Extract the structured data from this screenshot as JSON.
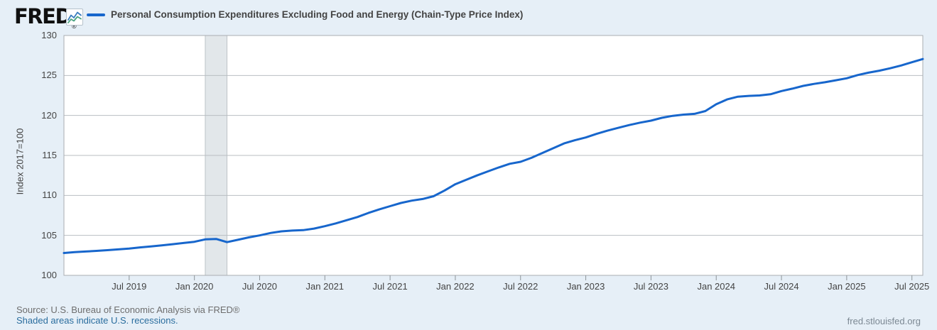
{
  "header": {
    "logo_text": "FRED",
    "logo_registered": "®"
  },
  "chart_data": {
    "type": "line",
    "title": "Personal Consumption Expenditures Excluding Food and Energy (Chain-Type Price Index)",
    "xlabel": "",
    "ylabel": "Index 2017=100",
    "ylim": [
      100,
      130
    ],
    "y_ticks": [
      100,
      105,
      110,
      115,
      120,
      125,
      130
    ],
    "grid": "horizontal",
    "legend_position": "top-left",
    "frequency": "monthly",
    "x_start": "2019-01",
    "x_end": "2025-08",
    "x_tick_labels": [
      "Jul 2019",
      "Jan 2020",
      "Jul 2020",
      "Jan 2021",
      "Jul 2021",
      "Jan 2022",
      "Jul 2022",
      "Jan 2023",
      "Jul 2023",
      "Jan 2024",
      "Jul 2024",
      "Jan 2025",
      "Jul 2025"
    ],
    "x_tick_month_indices": [
      6,
      12,
      18,
      24,
      30,
      36,
      42,
      48,
      54,
      60,
      66,
      72,
      78
    ],
    "series": [
      {
        "name": "Personal Consumption Expenditures Excluding Food and Energy (Chain-Type Price Index)",
        "color": "#1766cc",
        "values": [
          102.8,
          102.9,
          102.98,
          103.06,
          103.15,
          103.25,
          103.35,
          103.5,
          103.62,
          103.75,
          103.9,
          104.05,
          104.2,
          104.5,
          104.55,
          104.15,
          104.45,
          104.75,
          105.0,
          105.3,
          105.5,
          105.6,
          105.65,
          105.85,
          106.15,
          106.5,
          106.9,
          107.3,
          107.8,
          108.25,
          108.65,
          109.05,
          109.35,
          109.55,
          109.9,
          110.6,
          111.4,
          111.95,
          112.5,
          113.0,
          113.5,
          113.95,
          114.2,
          114.7,
          115.3,
          115.9,
          116.5,
          116.9,
          117.25,
          117.7,
          118.1,
          118.45,
          118.8,
          119.1,
          119.35,
          119.7,
          119.95,
          120.1,
          120.2,
          120.55,
          121.4,
          122.0,
          122.35,
          122.45,
          122.5,
          122.65,
          123.05,
          123.35,
          123.7,
          123.95,
          124.15,
          124.4,
          124.65,
          125.05,
          125.35,
          125.6,
          125.9,
          126.25,
          126.65,
          127.05
        ]
      }
    ],
    "recession_bands": [
      {
        "start": "2020-02",
        "end": "2020-04",
        "start_month_index": 13,
        "end_month_index": 15
      }
    ]
  },
  "footer": {
    "source": "Source: U.S. Bureau of Economic Analysis via FRED®",
    "recession_note": "Shaded areas indicate U.S. recessions.",
    "site": "fred.stlouisfed.org"
  },
  "colors": {
    "line": "#1766cc",
    "background": "#e6eff7",
    "plot_background": "#ffffff",
    "gridline": "#b9bec2",
    "plot_border": "#a9aeb2",
    "tick_mark": "#8d9499",
    "recession_fill": "#e2e7ea",
    "recession_edge": "#bdc3c7",
    "axis_text": "#444444",
    "legend_text": "#434343",
    "source_text": "#6e6e6e",
    "link_text": "#2a6d9e",
    "site_text": "#7c8893"
  }
}
